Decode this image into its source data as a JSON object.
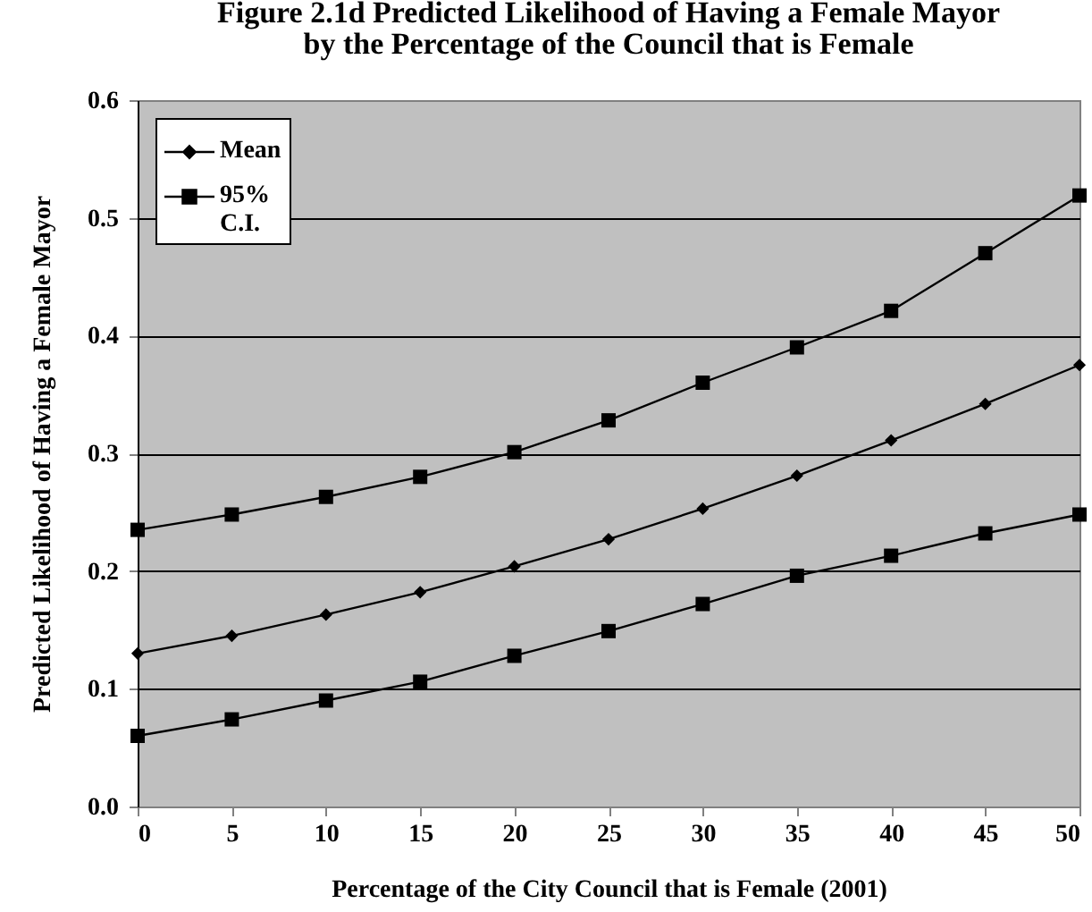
{
  "chart_data": {
    "type": "line",
    "title": "Figure 2.1d Predicted Likelihood of Having a Female Mayor\nby the Percentage of the Council that is Female",
    "xlabel": "Percentage of the City Council that is Female (2001)",
    "ylabel": "Predicted Likelihood of Having a Female Mayor",
    "x": [
      0,
      5,
      10,
      15,
      20,
      25,
      30,
      35,
      40,
      45,
      50
    ],
    "series": [
      {
        "name": "Mean",
        "color": "#000000",
        "marker": "diamond",
        "values": [
          0.13,
          0.145,
          0.163,
          0.182,
          0.204,
          0.227,
          0.253,
          0.281,
          0.311,
          0.342,
          0.375
        ]
      },
      {
        "name": "95% C.I.",
        "color": "#000000",
        "marker": "square",
        "values": [
          0.235,
          0.248,
          0.263,
          0.28,
          0.301,
          0.328,
          0.36,
          0.39,
          0.421,
          0.47,
          0.519
        ]
      },
      {
        "color": "#000000",
        "marker": "square",
        "values": [
          0.06,
          0.074,
          0.09,
          0.106,
          0.128,
          0.149,
          0.172,
          0.196,
          0.213,
          0.232,
          0.248
        ]
      }
    ],
    "xlim": [
      0,
      50
    ],
    "xticks": [
      0,
      5,
      10,
      15,
      20,
      25,
      30,
      35,
      40,
      45,
      50
    ],
    "ylim": [
      0,
      0.6
    ],
    "yticks": [
      {
        "value": 0,
        "label": "0.0"
      },
      0.1,
      0.2,
      0.3,
      0.4,
      0.5,
      0.6
    ],
    "grid": "y",
    "legend": "top left"
  }
}
